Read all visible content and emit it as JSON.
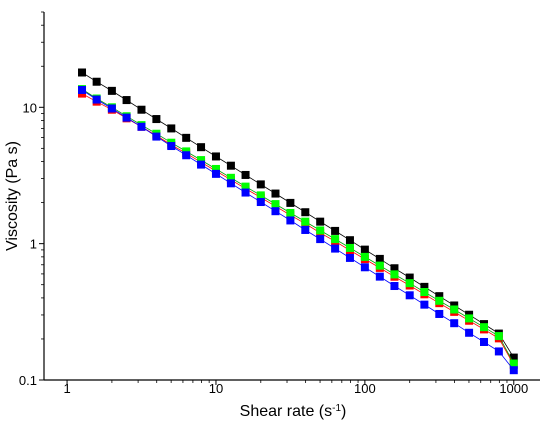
{
  "chart_data": {
    "type": "scatter",
    "xscale": "log",
    "yscale": "log",
    "xlim": [
      0.7,
      1500
    ],
    "ylim": [
      0.1,
      50
    ],
    "xticks": [
      1,
      10,
      100,
      1000
    ],
    "xticklabels": [
      "1",
      "10",
      "100",
      "1000"
    ],
    "yticks": [
      0.1,
      1,
      10
    ],
    "yticklabels": [
      "0.1",
      "1",
      "10"
    ],
    "xlabel_main": "Shear rate (s",
    "xlabel_sup": "-1",
    "xlabel_end": ")",
    "ylabel": "Viscosity (Pa s)",
    "grid": false,
    "marker": "square",
    "x": [
      1.26,
      1.58,
      2.0,
      2.51,
      3.16,
      3.98,
      5.01,
      6.31,
      7.94,
      10.0,
      12.6,
      15.8,
      20.0,
      25.1,
      31.6,
      39.8,
      50.1,
      63.1,
      79.4,
      100,
      126,
      158,
      200,
      251,
      316,
      398,
      501,
      631,
      794,
      1000
    ],
    "series": [
      {
        "color": "#000000",
        "values": [
          18.0,
          15.4,
          13.2,
          11.3,
          9.6,
          8.2,
          7.0,
          5.97,
          5.1,
          4.36,
          3.73,
          3.19,
          2.72,
          2.33,
          1.99,
          1.7,
          1.45,
          1.24,
          1.06,
          0.904,
          0.773,
          0.66,
          0.564,
          0.482,
          0.412,
          0.352,
          0.301,
          0.257,
          0.219,
          0.146
        ]
      },
      {
        "color": "#ff0000",
        "values": [
          12.6,
          11.0,
          9.6,
          8.3,
          7.2,
          6.2,
          5.3,
          4.6,
          3.95,
          3.41,
          2.94,
          2.53,
          2.18,
          1.88,
          1.62,
          1.4,
          1.2,
          1.04,
          0.893,
          0.77,
          0.664,
          0.572,
          0.493,
          0.425,
          0.366,
          0.316,
          0.272,
          0.235,
          0.202,
          0.129
        ]
      },
      {
        "color": "#00ff00",
        "values": [
          13.6,
          11.6,
          10.0,
          8.6,
          7.4,
          6.4,
          5.5,
          4.75,
          4.1,
          3.53,
          3.04,
          2.62,
          2.26,
          1.95,
          1.68,
          1.45,
          1.25,
          1.08,
          0.93,
          0.8,
          0.69,
          0.595,
          0.513,
          0.442,
          0.381,
          0.329,
          0.283,
          0.244,
          0.21,
          0.132
        ]
      },
      {
        "color": "#0000ff",
        "values": [
          13.4,
          11.4,
          9.8,
          8.4,
          7.2,
          6.1,
          5.2,
          4.45,
          3.8,
          3.25,
          2.77,
          2.37,
          2.02,
          1.73,
          1.48,
          1.26,
          1.08,
          0.92,
          0.786,
          0.671,
          0.573,
          0.489,
          0.418,
          0.357,
          0.305,
          0.261,
          0.222,
          0.19,
          0.162,
          0.118
        ]
      }
    ]
  }
}
